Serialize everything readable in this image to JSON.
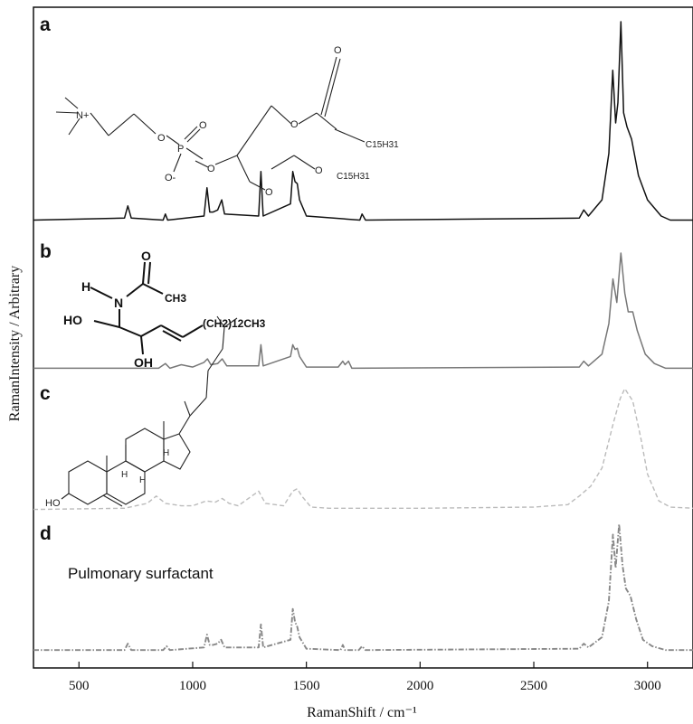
{
  "chart_data": {
    "type": "line",
    "title": "",
    "xlabel": "RamanShift / cm⁻¹",
    "ylabel": "RamanIntensity / Arbitrary",
    "xlim": [
      300,
      3200
    ],
    "xticks": [
      500,
      1000,
      1500,
      2000,
      2500,
      3000
    ],
    "tick_labels": [
      "500",
      "1000",
      "1500",
      "2000",
      "2500",
      "3000"
    ],
    "grid": false,
    "legend": "none",
    "series": [
      {
        "panel": "a",
        "color": "#111111",
        "style": "solid",
        "x": [
          300,
          700,
          715,
          730,
          870,
          880,
          890,
          1050,
          1063,
          1075,
          1090,
          1110,
          1128,
          1140,
          1290,
          1300,
          1310,
          1430,
          1440,
          1450,
          1460,
          1470,
          1500,
          1735,
          1745,
          1760,
          2700,
          2720,
          2740,
          2800,
          2830,
          2847,
          2860,
          2870,
          2883,
          2895,
          2910,
          2930,
          2960,
          3000,
          3030,
          3060,
          3100,
          3200
        ],
        "y": [
          0.02,
          0.03,
          0.09,
          0.03,
          0.02,
          0.05,
          0.02,
          0.04,
          0.18,
          0.06,
          0.06,
          0.07,
          0.12,
          0.05,
          0.04,
          0.26,
          0.04,
          0.1,
          0.26,
          0.21,
          0.2,
          0.12,
          0.04,
          0.02,
          0.05,
          0.02,
          0.03,
          0.07,
          0.04,
          0.12,
          0.35,
          0.76,
          0.5,
          0.6,
          1.0,
          0.55,
          0.48,
          0.42,
          0.24,
          0.12,
          0.08,
          0.04,
          0.02,
          0.02
        ]
      },
      {
        "panel": "b",
        "color": "#777777",
        "style": "solid",
        "x": [
          300,
          850,
          880,
          900,
          950,
          1000,
          1050,
          1065,
          1080,
          1110,
          1130,
          1150,
          1290,
          1300,
          1310,
          1430,
          1440,
          1450,
          1460,
          1470,
          1500,
          1640,
          1660,
          1670,
          1685,
          1700,
          2700,
          2720,
          2740,
          2800,
          2830,
          2848,
          2865,
          2883,
          2900,
          2915,
          2935,
          2955,
          2990,
          3030,
          3080,
          3200
        ],
        "y": [
          0.02,
          0.02,
          0.06,
          0.02,
          0.05,
          0.03,
          0.07,
          0.1,
          0.05,
          0.06,
          0.1,
          0.04,
          0.04,
          0.22,
          0.04,
          0.12,
          0.22,
          0.18,
          0.19,
          0.12,
          0.03,
          0.03,
          0.08,
          0.05,
          0.08,
          0.02,
          0.03,
          0.08,
          0.04,
          0.14,
          0.4,
          0.78,
          0.58,
          1.0,
          0.66,
          0.5,
          0.5,
          0.34,
          0.14,
          0.06,
          0.02,
          0.02
        ]
      },
      {
        "panel": "c",
        "color": "#bbbbbb",
        "style": "dashed",
        "x": [
          300,
          700,
          800,
          840,
          880,
          950,
          1000,
          1060,
          1100,
          1130,
          1160,
          1200,
          1260,
          1290,
          1320,
          1400,
          1440,
          1460,
          1480,
          1520,
          1600,
          2000,
          2500,
          2650,
          2700,
          2750,
          2800,
          2850,
          2880,
          2900,
          2935,
          2970,
          3000,
          3050,
          3100,
          3200
        ],
        "y": [
          0.01,
          0.02,
          0.06,
          0.12,
          0.06,
          0.04,
          0.04,
          0.08,
          0.07,
          0.1,
          0.06,
          0.04,
          0.12,
          0.16,
          0.06,
          0.04,
          0.16,
          0.18,
          0.12,
          0.03,
          0.02,
          0.02,
          0.03,
          0.05,
          0.12,
          0.2,
          0.35,
          0.72,
          0.92,
          1.0,
          0.9,
          0.6,
          0.3,
          0.08,
          0.03,
          0.02
        ]
      },
      {
        "panel": "d",
        "color": "#888888",
        "style": "dashdot",
        "x": [
          300,
          700,
          715,
          730,
          870,
          885,
          900,
          1050,
          1063,
          1075,
          1090,
          1110,
          1125,
          1140,
          1290,
          1300,
          1310,
          1430,
          1440,
          1450,
          1460,
          1470,
          1500,
          1650,
          1660,
          1670,
          1730,
          1745,
          1760,
          2700,
          2720,
          2740,
          2800,
          2830,
          2848,
          2860,
          2875,
          2890,
          2905,
          2925,
          2950,
          2980,
          3020,
          3080,
          3200
        ],
        "y": [
          0.02,
          0.02,
          0.07,
          0.02,
          0.02,
          0.05,
          0.02,
          0.04,
          0.14,
          0.06,
          0.06,
          0.07,
          0.1,
          0.04,
          0.04,
          0.22,
          0.04,
          0.1,
          0.34,
          0.24,
          0.2,
          0.12,
          0.03,
          0.02,
          0.06,
          0.02,
          0.02,
          0.05,
          0.02,
          0.03,
          0.07,
          0.04,
          0.12,
          0.4,
          0.92,
          0.66,
          1.0,
          0.68,
          0.5,
          0.44,
          0.26,
          0.1,
          0.05,
          0.02,
          0.02
        ]
      }
    ],
    "panel_labels": [
      "a",
      "b",
      "c",
      "d"
    ],
    "annotations": {
      "panel_d_text": "Pulmonary surfactant",
      "structure_a": {
        "n_plus": "N+",
        "o1": "O",
        "p": "P",
        "o2": "O",
        "o_top": "O",
        "o_minus": "O-",
        "o3": "O",
        "o_c1": "O",
        "o_c2": "O",
        "o_carbonyl": "O",
        "c15h31_top": "C15H31",
        "c15h31_bottom": "C15H31"
      },
      "structure_b": {
        "h": "H",
        "n": "N",
        "o": "O",
        "ch3": "CH3",
        "ho": "HO",
        "oh": "OH",
        "chain": "(CH2)12CH3"
      },
      "structure_c": {
        "ho": "HO",
        "h1": "H",
        "h2": "H",
        "h3": "H"
      }
    }
  }
}
